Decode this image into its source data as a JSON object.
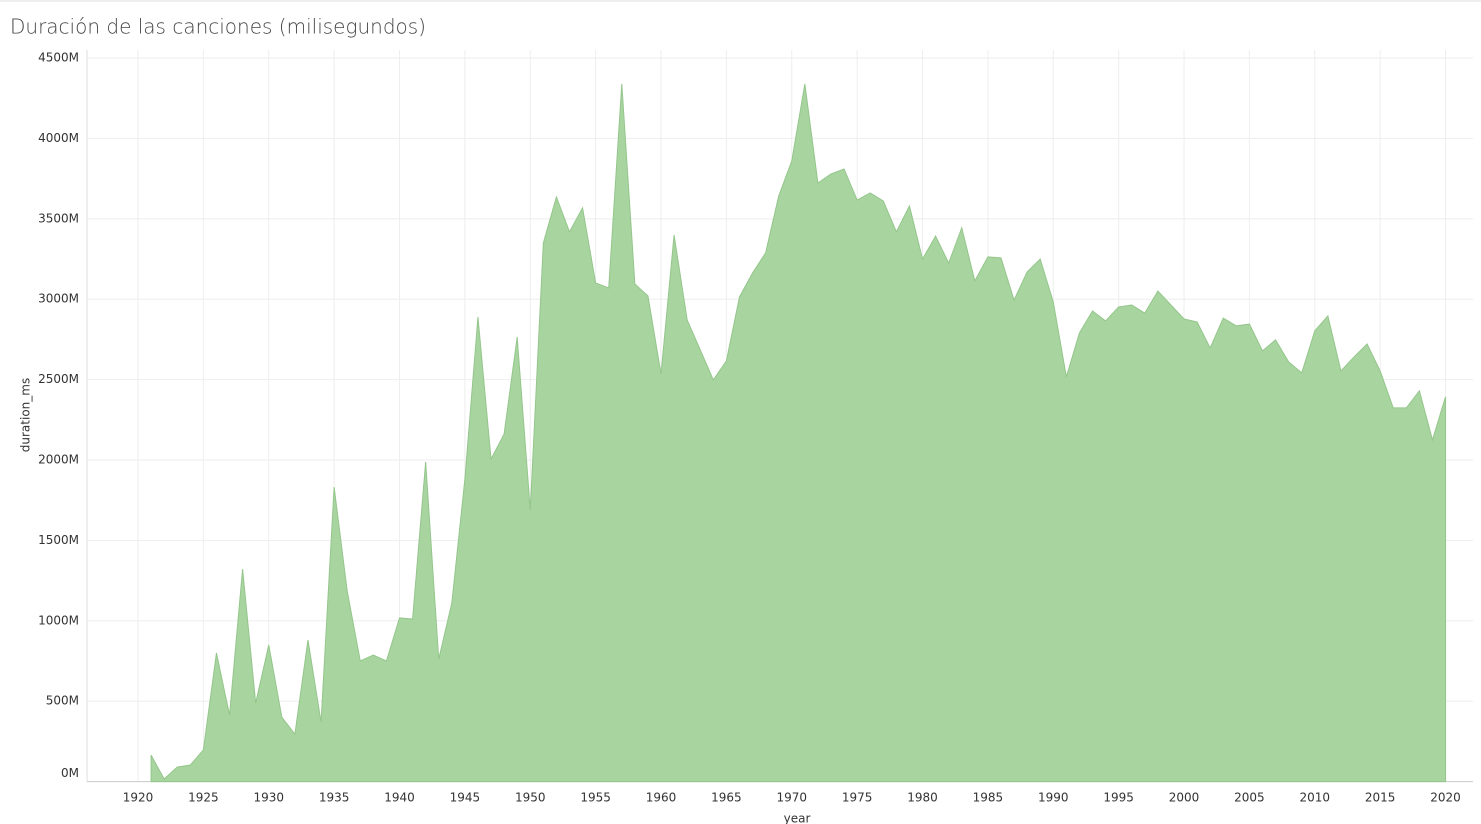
{
  "chart_data": {
    "type": "area",
    "title": "Duración de las canciones (milisegundos)",
    "x_label": "year",
    "y_label": "duration_ms",
    "x": [
      1921,
      1922,
      1923,
      1924,
      1925,
      1926,
      1927,
      1928,
      1929,
      1930,
      1931,
      1932,
      1933,
      1934,
      1935,
      1936,
      1937,
      1938,
      1939,
      1940,
      1941,
      1942,
      1943,
      1944,
      1945,
      1946,
      1947,
      1948,
      1949,
      1950,
      1951,
      1952,
      1953,
      1954,
      1955,
      1956,
      1957,
      1958,
      1959,
      1960,
      1961,
      1962,
      1963,
      1964,
      1965,
      1966,
      1967,
      1968,
      1969,
      1970,
      1971,
      1972,
      1973,
      1974,
      1975,
      1976,
      1977,
      1978,
      1979,
      1980,
      1981,
      1982,
      1983,
      1984,
      1985,
      1986,
      1987,
      1988,
      1989,
      1990,
      1991,
      1992,
      1993,
      1994,
      1995,
      1996,
      1997,
      1998,
      1999,
      2000,
      2001,
      2002,
      2003,
      2004,
      2005,
      2006,
      2007,
      2008,
      2009,
      2010,
      2011,
      2012,
      2013,
      2014,
      2015,
      2016,
      2017,
      2018,
      2019,
      2020
    ],
    "values": [
      165,
      16,
      90,
      103,
      197,
      800,
      414,
      1322,
      488,
      850,
      401,
      295,
      881,
      370,
      1832,
      1185,
      750,
      787,
      750,
      1018,
      1011,
      1988,
      762,
      1110,
      1882,
      2890,
      2006,
      2162,
      2765,
      1689,
      3350,
      3636,
      3419,
      3568,
      3101,
      3070,
      4339,
      3095,
      3021,
      2535,
      3400,
      2871,
      2685,
      2498,
      2616,
      3014,
      3163,
      3288,
      3642,
      3860,
      4339,
      3723,
      3779,
      3810,
      3617,
      3661,
      3611,
      3419,
      3580,
      3250,
      3393,
      3225,
      3444,
      3114,
      3263,
      3257,
      2995,
      3170,
      3250,
      2983,
      2517,
      2790,
      2927,
      2865,
      2952,
      2964,
      2914,
      3051,
      2964,
      2877,
      2859,
      2697,
      2883,
      2834,
      2846,
      2679,
      2747,
      2610,
      2542,
      2803,
      2896,
      2554,
      2641,
      2722,
      2554,
      2324,
      2324,
      2430,
      2125,
      2393
    ],
    "color": "#a8d4a0",
    "xlim": [
      1916.1,
      2022.1
    ],
    "xticks": [
      1920,
      1925,
      1930,
      1935,
      1940,
      1945,
      1950,
      1955,
      1960,
      1965,
      1970,
      1975,
      1980,
      1985,
      1990,
      1995,
      2000,
      2005,
      2010,
      2015,
      2020
    ],
    "ylim": [
      0,
      4550
    ],
    "yticks": [
      {
        "value": 0,
        "label": "0M"
      },
      {
        "value": 500,
        "label": "500M"
      },
      {
        "value": 1000,
        "label": "1000M"
      },
      {
        "value": 1500,
        "label": "1500M"
      },
      {
        "value": 2000,
        "label": "2000M"
      },
      {
        "value": 2500,
        "label": "2500M"
      },
      {
        "value": 3000,
        "label": "3000M"
      },
      {
        "value": 3500,
        "label": "3500M"
      },
      {
        "value": 4000,
        "label": "4000M"
      },
      {
        "value": 4500,
        "label": "4500M"
      }
    ],
    "grid": true
  }
}
